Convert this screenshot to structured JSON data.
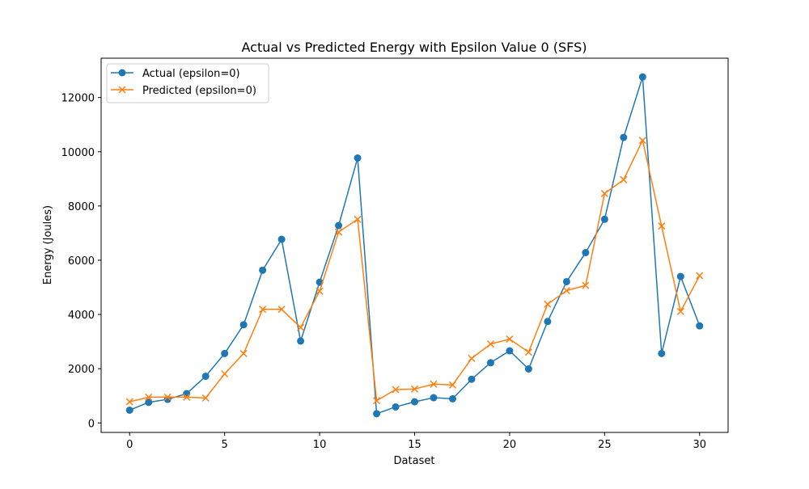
{
  "chart_data": {
    "type": "line",
    "title": "Actual vs Predicted Energy with Epsilon Value 0 (SFS)",
    "xlabel": "Dataset",
    "ylabel": "Energy (Joules)",
    "xlim": [
      -1.5,
      31.5
    ],
    "ylim": [
      -350,
      13450
    ],
    "xticks": [
      0,
      5,
      10,
      15,
      20,
      25,
      30
    ],
    "yticks": [
      0,
      2000,
      4000,
      6000,
      8000,
      10000,
      12000
    ],
    "grid": false,
    "legend_position": "upper left",
    "x": [
      0,
      1,
      2,
      3,
      4,
      5,
      6,
      7,
      8,
      9,
      10,
      11,
      12,
      13,
      14,
      15,
      16,
      17,
      18,
      19,
      20,
      21,
      22,
      23,
      24,
      25,
      26,
      27,
      28,
      29,
      30
    ],
    "series": [
      {
        "name": "Actual (epsilon=0)",
        "color": "#1f77b4",
        "marker": "circle",
        "values": [
          470,
          760,
          870,
          1080,
          1720,
          2560,
          3620,
          5630,
          6770,
          3020,
          5190,
          7280,
          9770,
          340,
          590,
          780,
          930,
          890,
          1610,
          2220,
          2660,
          1990,
          3740,
          5210,
          6280,
          7510,
          10530,
          12760,
          2560,
          5400,
          3580
        ]
      },
      {
        "name": "Predicted (epsilon=0)",
        "color": "#ff7f0e",
        "marker": "x",
        "values": [
          780,
          950,
          950,
          950,
          920,
          1810,
          2560,
          4190,
          4190,
          3520,
          4860,
          7040,
          7510,
          820,
          1230,
          1250,
          1430,
          1400,
          2380,
          2910,
          3090,
          2610,
          4380,
          4880,
          5070,
          8460,
          8970,
          10420,
          7260,
          4110,
          5430
        ]
      }
    ]
  }
}
